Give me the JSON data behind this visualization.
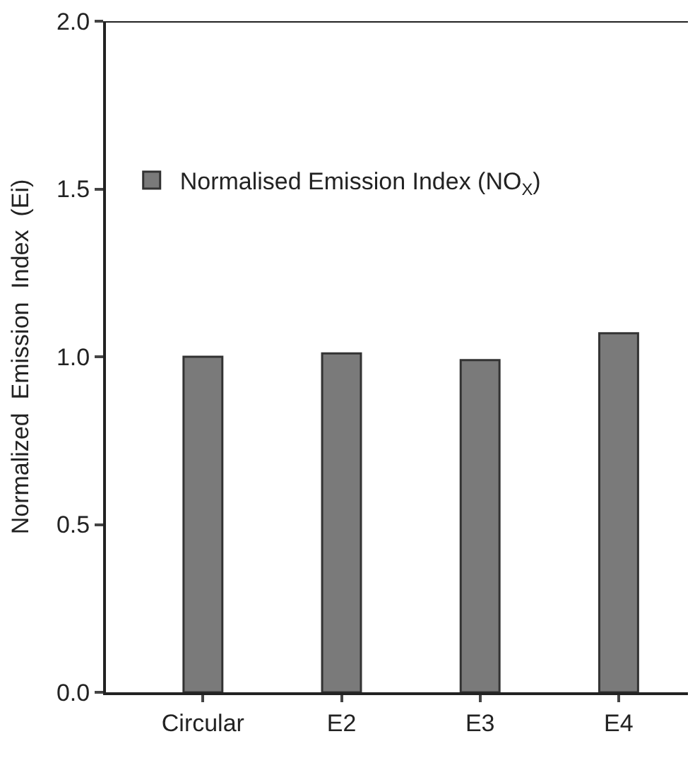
{
  "chart_data": {
    "type": "bar",
    "ylabel": "Normalized  Emission  Index  (Ei)",
    "categories": [
      "Circular",
      "E2",
      "E3",
      "E4"
    ],
    "series": [
      {
        "name": "Normalised Emission Index (NO$_{X}$)",
        "color": "#7a7a7a",
        "values": [
          1.0,
          1.01,
          0.99,
          1.07
        ]
      }
    ],
    "ylim": [
      0,
      2.0
    ],
    "yticks": [
      {
        "value": 0,
        "label": "0.0"
      },
      {
        "value": 0.5,
        "label": "0.5"
      },
      {
        "value": 1,
        "label": "1.0"
      },
      {
        "value": 1.5,
        "label": "1.5"
      },
      {
        "value": 2,
        "label": "2.0"
      }
    ],
    "legend": "top left"
  }
}
